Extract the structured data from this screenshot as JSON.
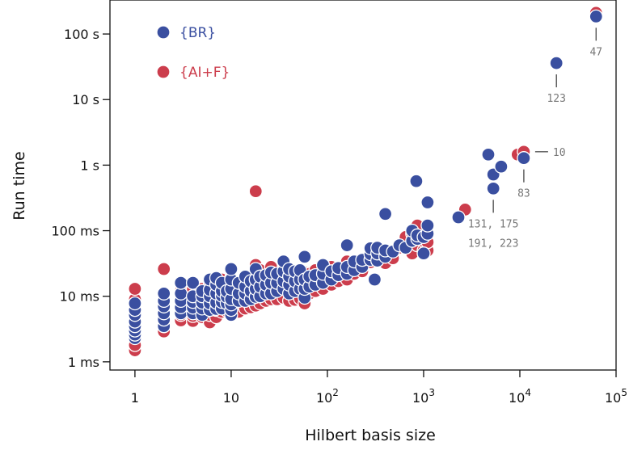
{
  "chart_data": {
    "type": "scatter",
    "title": "",
    "xlabel": "Hilbert basis size",
    "ylabel": "Run time",
    "xscale": "log",
    "yscale": "log",
    "xlim": [
      0.55,
      100000
    ],
    "ylim": [
      0.00075,
      330
    ],
    "grid": false,
    "legend_position": "top-left",
    "x_ticks": [
      {
        "value": 1,
        "label": "1"
      },
      {
        "value": 10,
        "label": "10"
      },
      {
        "value": 100,
        "label": "10",
        "exponent": "2"
      },
      {
        "value": 1000,
        "label": "10",
        "exponent": "3"
      },
      {
        "value": 10000,
        "label": "10",
        "exponent": "4"
      },
      {
        "value": 100000,
        "label": "10",
        "exponent": "5"
      }
    ],
    "y_ticks": [
      {
        "value": 0.001,
        "label": "1 ms"
      },
      {
        "value": 0.01,
        "label": "10 ms"
      },
      {
        "value": 0.1,
        "label": "100 ms"
      },
      {
        "value": 1,
        "label": "1 s"
      },
      {
        "value": 10,
        "label": "10 s"
      },
      {
        "value": 100,
        "label": "100 s"
      }
    ],
    "series": [
      {
        "name": "{AI+F}",
        "color": "#cc3d4c",
        "points": [
          [
            1,
            0.0015
          ],
          [
            1,
            0.0018
          ],
          [
            1,
            0.0024
          ],
          [
            1,
            0.0032
          ],
          [
            1,
            0.0045
          ],
          [
            1,
            0.0065
          ],
          [
            1,
            0.009
          ],
          [
            1,
            0.013
          ],
          [
            2,
            0.0029
          ],
          [
            2,
            0.0035
          ],
          [
            2,
            0.0042
          ],
          [
            2,
            0.0055
          ],
          [
            2,
            0.007
          ],
          [
            2,
            0.009
          ],
          [
            2,
            0.026
          ],
          [
            3,
            0.0043
          ],
          [
            3,
            0.0052
          ],
          [
            3,
            0.006
          ],
          [
            3,
            0.0075
          ],
          [
            3,
            0.0095
          ],
          [
            3,
            0.012
          ],
          [
            4,
            0.0042
          ],
          [
            4,
            0.005
          ],
          [
            4,
            0.0062
          ],
          [
            4,
            0.0078
          ],
          [
            4,
            0.0098
          ],
          [
            4,
            0.013
          ],
          [
            5,
            0.0048
          ],
          [
            5,
            0.006
          ],
          [
            5,
            0.0075
          ],
          [
            5,
            0.0095
          ],
          [
            5,
            0.013
          ],
          [
            6,
            0.004
          ],
          [
            6,
            0.0052
          ],
          [
            6,
            0.0068
          ],
          [
            6,
            0.0088
          ],
          [
            6,
            0.012
          ],
          [
            6,
            0.016
          ],
          [
            7,
            0.0048
          ],
          [
            7,
            0.0062
          ],
          [
            7,
            0.0082
          ],
          [
            7,
            0.011
          ],
          [
            7,
            0.015
          ],
          [
            8,
            0.0058
          ],
          [
            8,
            0.0072
          ],
          [
            8,
            0.0095
          ],
          [
            8,
            0.013
          ],
          [
            8,
            0.018
          ],
          [
            9,
            0.006
          ],
          [
            9,
            0.0078
          ],
          [
            9,
            0.01
          ],
          [
            9,
            0.014
          ],
          [
            10,
            0.0056
          ],
          [
            10,
            0.0075
          ],
          [
            10,
            0.0098
          ],
          [
            10,
            0.013
          ],
          [
            10,
            0.019
          ],
          [
            12,
            0.0058
          ],
          [
            12,
            0.008
          ],
          [
            12,
            0.011
          ],
          [
            12,
            0.015
          ],
          [
            14,
            0.0065
          ],
          [
            14,
            0.0085
          ],
          [
            14,
            0.012
          ],
          [
            14,
            0.017
          ],
          [
            16,
            0.0068
          ],
          [
            16,
            0.009
          ],
          [
            16,
            0.013
          ],
          [
            16,
            0.019
          ],
          [
            18,
            0.4
          ],
          [
            18,
            0.0072
          ],
          [
            18,
            0.0095
          ],
          [
            18,
            0.014
          ],
          [
            18,
            0.021
          ],
          [
            18,
            0.03
          ],
          [
            20,
            0.0078
          ],
          [
            20,
            0.011
          ],
          [
            20,
            0.016
          ],
          [
            20,
            0.025
          ],
          [
            23,
            0.0085
          ],
          [
            23,
            0.012
          ],
          [
            23,
            0.018
          ],
          [
            26,
            0.009
          ],
          [
            26,
            0.013
          ],
          [
            26,
            0.02
          ],
          [
            26,
            0.028
          ],
          [
            30,
            0.009
          ],
          [
            30,
            0.013
          ],
          [
            30,
            0.019
          ],
          [
            35,
            0.0095
          ],
          [
            35,
            0.014
          ],
          [
            35,
            0.022
          ],
          [
            35,
            0.033
          ],
          [
            40,
            0.0085
          ],
          [
            40,
            0.012
          ],
          [
            40,
            0.018
          ],
          [
            40,
            0.026
          ],
          [
            46,
            0.0088
          ],
          [
            46,
            0.013
          ],
          [
            46,
            0.02
          ],
          [
            52,
            0.0092
          ],
          [
            52,
            0.013
          ],
          [
            52,
            0.019
          ],
          [
            58,
            0.0078
          ],
          [
            58,
            0.011
          ],
          [
            58,
            0.016
          ],
          [
            58,
            0.023
          ],
          [
            65,
            0.011
          ],
          [
            65,
            0.016
          ],
          [
            65,
            0.022
          ],
          [
            75,
            0.012
          ],
          [
            75,
            0.018
          ],
          [
            75,
            0.025
          ],
          [
            90,
            0.013
          ],
          [
            90,
            0.017
          ],
          [
            90,
            0.024
          ],
          [
            110,
            0.015
          ],
          [
            110,
            0.02
          ],
          [
            110,
            0.028
          ],
          [
            130,
            0.017
          ],
          [
            130,
            0.023
          ],
          [
            160,
            0.018
          ],
          [
            160,
            0.025
          ],
          [
            160,
            0.034
          ],
          [
            190,
            0.022
          ],
          [
            190,
            0.03
          ],
          [
            230,
            0.024
          ],
          [
            230,
            0.032
          ],
          [
            280,
            0.033
          ],
          [
            280,
            0.045
          ],
          [
            330,
            0.04
          ],
          [
            330,
            0.05
          ],
          [
            400,
            0.032
          ],
          [
            400,
            0.042
          ],
          [
            480,
            0.038
          ],
          [
            560,
            0.055
          ],
          [
            650,
            0.08
          ],
          [
            760,
            0.045
          ],
          [
            760,
            0.09
          ],
          [
            860,
            0.12
          ],
          [
            860,
            0.06
          ],
          [
            1000,
            0.05
          ],
          [
            1000,
            0.07
          ],
          [
            1100,
            0.05
          ],
          [
            1100,
            0.067
          ],
          [
            2700,
            0.21
          ],
          [
            9500,
            1.45
          ],
          [
            11000,
            1.6
          ],
          [
            62000,
            210
          ]
        ]
      },
      {
        "name": "{BR}",
        "color": "#3a4fa0",
        "points": [
          [
            1,
            0.0023
          ],
          [
            1,
            0.0026
          ],
          [
            1,
            0.003
          ],
          [
            1,
            0.0035
          ],
          [
            1,
            0.0041
          ],
          [
            1,
            0.0052
          ],
          [
            1,
            0.0062
          ],
          [
            1,
            0.0078
          ],
          [
            2,
            0.0035
          ],
          [
            2,
            0.0044
          ],
          [
            2,
            0.0055
          ],
          [
            2,
            0.007
          ],
          [
            2,
            0.0085
          ],
          [
            2,
            0.011
          ],
          [
            3,
            0.0055
          ],
          [
            3,
            0.0068
          ],
          [
            3,
            0.0085
          ],
          [
            3,
            0.011
          ],
          [
            3,
            0.016
          ],
          [
            4,
            0.0055
          ],
          [
            4,
            0.0067
          ],
          [
            4,
            0.0082
          ],
          [
            4,
            0.01
          ],
          [
            4,
            0.016
          ],
          [
            5,
            0.0052
          ],
          [
            5,
            0.0065
          ],
          [
            5,
            0.008
          ],
          [
            5,
            0.01
          ],
          [
            5,
            0.012
          ],
          [
            6,
            0.0062
          ],
          [
            6,
            0.0078
          ],
          [
            6,
            0.01
          ],
          [
            6,
            0.0125
          ],
          [
            6,
            0.018
          ],
          [
            7,
            0.0064
          ],
          [
            7,
            0.008
          ],
          [
            7,
            0.011
          ],
          [
            7,
            0.015
          ],
          [
            7,
            0.019
          ],
          [
            8,
            0.0065
          ],
          [
            8,
            0.0082
          ],
          [
            8,
            0.0102
          ],
          [
            8,
            0.012
          ],
          [
            8,
            0.016
          ],
          [
            9,
            0.0078
          ],
          [
            9,
            0.0098
          ],
          [
            9,
            0.012
          ],
          [
            10,
            0.0052
          ],
          [
            10,
            0.0062
          ],
          [
            10,
            0.0075
          ],
          [
            10,
            0.009
          ],
          [
            10,
            0.013
          ],
          [
            10,
            0.018
          ],
          [
            10,
            0.026
          ],
          [
            12,
            0.0085
          ],
          [
            12,
            0.011
          ],
          [
            12,
            0.016
          ],
          [
            14,
            0.0085
          ],
          [
            14,
            0.011
          ],
          [
            14,
            0.014
          ],
          [
            14,
            0.02
          ],
          [
            16,
            0.009
          ],
          [
            16,
            0.012
          ],
          [
            16,
            0.017
          ],
          [
            18,
            0.0098
          ],
          [
            18,
            0.013
          ],
          [
            18,
            0.018
          ],
          [
            18,
            0.026
          ],
          [
            20,
            0.01
          ],
          [
            20,
            0.014
          ],
          [
            20,
            0.02
          ],
          [
            23,
            0.011
          ],
          [
            23,
            0.015
          ],
          [
            23,
            0.021
          ],
          [
            26,
            0.011
          ],
          [
            26,
            0.016
          ],
          [
            26,
            0.023
          ],
          [
            30,
            0.012
          ],
          [
            30,
            0.016
          ],
          [
            30,
            0.022
          ],
          [
            35,
            0.013
          ],
          [
            35,
            0.017
          ],
          [
            35,
            0.024
          ],
          [
            35,
            0.034
          ],
          [
            40,
            0.011
          ],
          [
            40,
            0.015
          ],
          [
            40,
            0.02
          ],
          [
            40,
            0.026
          ],
          [
            46,
            0.012
          ],
          [
            46,
            0.017
          ],
          [
            46,
            0.024
          ],
          [
            52,
            0.013
          ],
          [
            52,
            0.018
          ],
          [
            52,
            0.025
          ],
          [
            58,
            0.0095
          ],
          [
            58,
            0.013
          ],
          [
            58,
            0.018
          ],
          [
            58,
            0.04
          ],
          [
            65,
            0.014
          ],
          [
            65,
            0.02
          ],
          [
            75,
            0.015
          ],
          [
            75,
            0.021
          ],
          [
            90,
            0.016
          ],
          [
            90,
            0.022
          ],
          [
            90,
            0.03
          ],
          [
            110,
            0.018
          ],
          [
            110,
            0.024
          ],
          [
            130,
            0.021
          ],
          [
            130,
            0.027
          ],
          [
            160,
            0.022
          ],
          [
            160,
            0.028
          ],
          [
            160,
            0.06
          ],
          [
            190,
            0.025
          ],
          [
            190,
            0.034
          ],
          [
            230,
            0.028
          ],
          [
            230,
            0.036
          ],
          [
            280,
            0.036
          ],
          [
            280,
            0.044
          ],
          [
            280,
            0.054
          ],
          [
            310,
            0.018
          ],
          [
            330,
            0.035
          ],
          [
            330,
            0.045
          ],
          [
            330,
            0.055
          ],
          [
            400,
            0.18
          ],
          [
            400,
            0.04
          ],
          [
            400,
            0.05
          ],
          [
            480,
            0.048
          ],
          [
            560,
            0.06
          ],
          [
            650,
            0.055
          ],
          [
            760,
            0.07
          ],
          [
            760,
            0.1
          ],
          [
            840,
            0.57
          ],
          [
            860,
            0.075
          ],
          [
            860,
            0.085
          ],
          [
            1000,
            0.045
          ],
          [
            1000,
            0.08
          ],
          [
            1100,
            0.27
          ],
          [
            1100,
            0.09
          ],
          [
            1100,
            0.12
          ],
          [
            2300,
            0.16
          ],
          [
            4700,
            1.45
          ],
          [
            5300,
            0.44
          ],
          [
            5300,
            0.72
          ],
          [
            6400,
            0.95
          ],
          [
            11000,
            1.28
          ],
          [
            24000,
            36
          ],
          [
            62000,
            185
          ]
        ]
      }
    ],
    "annotations": [
      {
        "text": "47",
        "x": 62000,
        "y": 185,
        "side": "below"
      },
      {
        "text": "123",
        "x": 24000,
        "y": 36,
        "side": "below"
      },
      {
        "text": "10",
        "x": 11000,
        "y": 1.6,
        "side": "right"
      },
      {
        "text": "83",
        "x": 11000,
        "y": 1.28,
        "side": "below"
      },
      {
        "text": "131, 175",
        "x": 5300,
        "y": 0.44,
        "side": "below"
      },
      {
        "text": "191, 223",
        "x": 5300,
        "y": 0.44,
        "side": "below2"
      }
    ]
  }
}
